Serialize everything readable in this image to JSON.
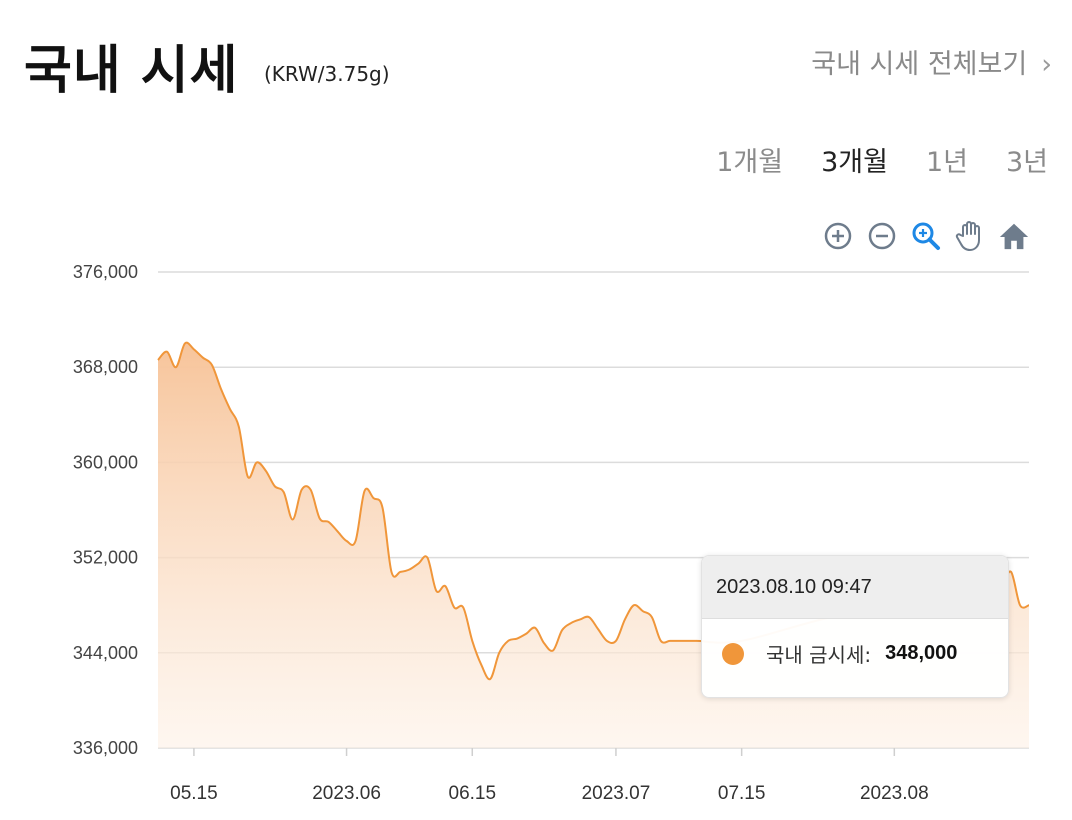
{
  "header": {
    "title": "국내 시세",
    "unit": "(KRW/3.75g)",
    "view_all": "국내 시세 전체보기",
    "view_all_chevron": "›"
  },
  "tabs": [
    {
      "label": "1개월",
      "active": false
    },
    {
      "label": "3개월",
      "active": true
    },
    {
      "label": "1년",
      "active": false
    },
    {
      "label": "3년",
      "active": false
    }
  ],
  "toolbar": [
    "zoom-in-icon",
    "zoom-out-icon",
    "selection-zoom-icon",
    "pan-hand-icon",
    "reset-home-icon"
  ],
  "colors": {
    "line": "#F0963A",
    "area_top": "#F7C49A",
    "toolbar_icon": "#6E7C8C",
    "toolbar_active": "#1E88E5"
  },
  "tooltip": {
    "date": "2023.08.10 09:47",
    "label": "국내 금시세:",
    "value": "348,000"
  },
  "chart_data": {
    "type": "area",
    "ylim": [
      336000,
      376000
    ],
    "yticks": [
      "376,000",
      "368,000",
      "360,000",
      "352,000",
      "344,000",
      "336,000"
    ],
    "x_start": "2023-05-11",
    "x_end": "2023-08-16",
    "xticks": [
      {
        "date": "2023-05-15",
        "label": "05.15"
      },
      {
        "date": "2023-06-01",
        "label": "2023.06"
      },
      {
        "date": "2023-06-15",
        "label": "06.15"
      },
      {
        "date": "2023-07-01",
        "label": "2023.07"
      },
      {
        "date": "2023-07-15",
        "label": "07.15"
      },
      {
        "date": "2023-08-01",
        "label": "2023.08"
      }
    ],
    "series": [
      {
        "values": [
          [
            "2023-05-11",
            368600
          ],
          [
            "2023-05-12",
            369300
          ],
          [
            "2023-05-13",
            368000
          ],
          [
            "2023-05-14",
            370000
          ],
          [
            "2023-05-15",
            369500
          ],
          [
            "2023-05-16",
            368800
          ],
          [
            "2023-05-17",
            368200
          ],
          [
            "2023-05-18",
            366200
          ],
          [
            "2023-05-19",
            364500
          ],
          [
            "2023-05-20",
            363000
          ],
          [
            "2023-05-21",
            358800
          ],
          [
            "2023-05-22",
            360000
          ],
          [
            "2023-05-23",
            359300
          ],
          [
            "2023-05-24",
            358000
          ],
          [
            "2023-05-25",
            357500
          ],
          [
            "2023-05-26",
            355200
          ],
          [
            "2023-05-27",
            357700
          ],
          [
            "2023-05-28",
            357700
          ],
          [
            "2023-05-29",
            355300
          ],
          [
            "2023-05-30",
            355000
          ],
          [
            "2023-05-31",
            354200
          ],
          [
            "2023-06-01",
            353400
          ],
          [
            "2023-06-02",
            353400
          ],
          [
            "2023-06-03",
            357600
          ],
          [
            "2023-06-04",
            357000
          ],
          [
            "2023-06-05",
            356200
          ],
          [
            "2023-06-06",
            350800
          ],
          [
            "2023-06-07",
            350800
          ],
          [
            "2023-06-08",
            351000
          ],
          [
            "2023-06-09",
            351500
          ],
          [
            "2023-06-10",
            352000
          ],
          [
            "2023-06-11",
            349200
          ],
          [
            "2023-06-12",
            349600
          ],
          [
            "2023-06-13",
            347800
          ],
          [
            "2023-06-14",
            347800
          ],
          [
            "2023-06-15",
            345000
          ],
          [
            "2023-06-16",
            343000
          ],
          [
            "2023-06-17",
            341800
          ],
          [
            "2023-06-18",
            344000
          ],
          [
            "2023-06-19",
            345000
          ],
          [
            "2023-06-20",
            345200
          ],
          [
            "2023-06-21",
            345600
          ],
          [
            "2023-06-22",
            346100
          ],
          [
            "2023-06-23",
            344800
          ],
          [
            "2023-06-24",
            344200
          ],
          [
            "2023-06-25",
            345900
          ],
          [
            "2023-06-26",
            346500
          ],
          [
            "2023-06-27",
            346800
          ],
          [
            "2023-06-28",
            347000
          ],
          [
            "2023-06-29",
            346000
          ],
          [
            "2023-06-30",
            345000
          ],
          [
            "2023-07-01",
            345000
          ],
          [
            "2023-07-02",
            346800
          ],
          [
            "2023-07-03",
            348000
          ],
          [
            "2023-07-04",
            347500
          ],
          [
            "2023-07-05",
            347000
          ],
          [
            "2023-07-06",
            345000
          ],
          [
            "2023-07-07",
            345000
          ],
          [
            "2023-07-08",
            345000
          ],
          [
            "2023-07-09",
            345000
          ],
          [
            "2023-07-10",
            345000
          ],
          [
            "2023-07-15",
            345000
          ],
          [
            "2023-07-25",
            347000
          ],
          [
            "2023-08-01",
            347500
          ],
          [
            "2023-08-08",
            347800
          ],
          [
            "2023-08-12",
            348000
          ],
          [
            "2023-08-13",
            349500
          ],
          [
            "2023-08-14",
            350800
          ],
          [
            "2023-08-15",
            348000
          ],
          [
            "2023-08-16",
            348000
          ]
        ]
      }
    ]
  }
}
